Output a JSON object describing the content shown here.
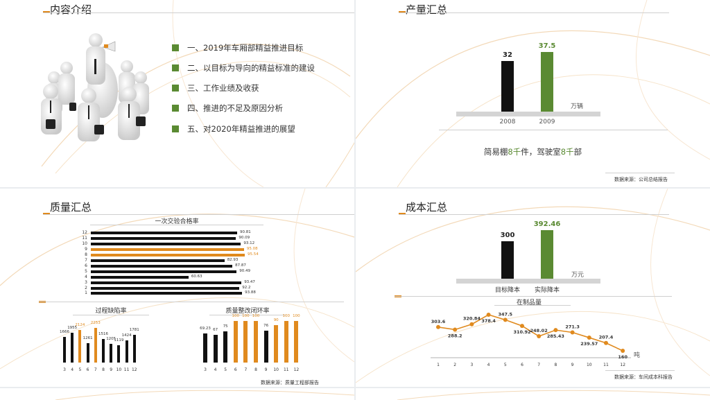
{
  "colors": {
    "accent": "#e08a1e",
    "green": "#5a8a32",
    "black": "#111111",
    "gray": "#d4d4d4"
  },
  "slide1": {
    "title": "内容介绍",
    "items": [
      "一、2019年车厢部精益推进目标",
      "二、以目标为导向的精益标准的建设",
      "三、工作业绩及收获",
      "四、推进的不足及原因分析",
      "五、对2020年精益推进的展望"
    ]
  },
  "slide2": {
    "title": "产量汇总",
    "unit": "万辆",
    "caption_parts": [
      "简易棚",
      "8千",
      "件，驾驶室",
      "8千",
      "部"
    ],
    "source": "数据来源：公司总结报告"
  },
  "slide3": {
    "title": "质量汇总",
    "source": "数据来源：质量工程部报告"
  },
  "slide4": {
    "title": "成本汇总",
    "unit_bar": "万元",
    "unit_line": "吨",
    "source": "数据来源：车间成本科报告"
  },
  "chart_data": [
    {
      "type": "bar",
      "categories": [
        "2008",
        "2009"
      ],
      "values": [
        32,
        37.5
      ],
      "colors": [
        "#111111",
        "#5a8a32"
      ],
      "unit": "万辆"
    },
    {
      "type": "bar",
      "orientation": "horizontal",
      "title": "一次交验合格率",
      "categories": [
        "12",
        "11",
        "10",
        "9",
        "8",
        "7",
        "6",
        "5",
        "4",
        "3",
        "2",
        "1"
      ],
      "values": [
        90.81,
        90.09,
        93.12,
        95.08,
        95.54,
        82.93,
        87.87,
        90.49,
        60.63,
        93.47,
        92.2,
        93.88
      ],
      "highlight": [
        "9",
        "8"
      ]
    },
    {
      "type": "bar",
      "title": "过程缺陷率",
      "categories": [
        "3",
        "4",
        "5",
        "6",
        "7",
        "8",
        "9",
        "10",
        "11",
        "12"
      ],
      "values": [
        1666,
        1955,
        2124,
        1261,
        2253,
        1516,
        1205,
        1119,
        1424,
        1781
      ],
      "highlight": [
        "5",
        "7"
      ]
    },
    {
      "type": "bar",
      "title": "质量整改闭环率",
      "categories": [
        "3",
        "4",
        "5",
        "6",
        "7",
        "8",
        "9",
        "10",
        "11",
        "12"
      ],
      "values": [
        69.23,
        67,
        75,
        100,
        100,
        100,
        76,
        90,
        100,
        100
      ],
      "highlight": [
        "6",
        "7",
        "8",
        "10",
        "11",
        "12"
      ]
    },
    {
      "type": "bar",
      "categories": [
        "目标降本",
        "实际降本"
      ],
      "values": [
        300,
        392.46
      ],
      "colors": [
        "#111111",
        "#5a8a32"
      ],
      "unit": "万元"
    },
    {
      "type": "line",
      "title": "在制品量",
      "x": [
        "1",
        "2",
        "3",
        "4",
        "5",
        "6",
        "7",
        "8",
        "9",
        "10",
        "11",
        "12"
      ],
      "values": [
        303.6,
        288.2,
        320.84,
        378.4,
        347.5,
        310.92,
        248.02,
        285.43,
        271.3,
        239.57,
        207.4,
        160
      ],
      "unit": "吨"
    }
  ]
}
